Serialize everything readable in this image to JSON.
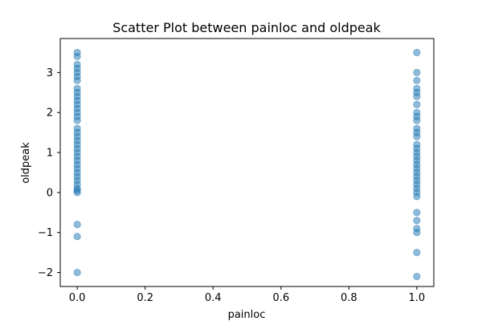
{
  "chart_data": {
    "type": "scatter",
    "title": "Scatter Plot between painloc and oldpeak",
    "xlabel": "painloc",
    "ylabel": "oldpeak",
    "xlim": [
      -0.05,
      1.05
    ],
    "ylim": [
      -2.35,
      3.85
    ],
    "xticks": [
      0.0,
      0.2,
      0.4,
      0.6,
      0.8,
      1.0
    ],
    "xtick_labels": [
      "0.0",
      "0.2",
      "0.4",
      "0.6",
      "0.8",
      "1.0"
    ],
    "yticks": [
      -2,
      -1,
      0,
      1,
      2,
      3
    ],
    "ytick_labels": [
      "−2",
      "−1",
      "0",
      "1",
      "2",
      "3"
    ],
    "grid": false,
    "marker_color": "#1f77b4",
    "marker_alpha": 0.5,
    "series": [
      {
        "points": [
          {
            "x": 0,
            "y": 3.5
          },
          {
            "x": 0,
            "y": 3.4
          },
          {
            "x": 0,
            "y": 3.2
          },
          {
            "x": 0,
            "y": 3.1
          },
          {
            "x": 0,
            "y": 3.0
          },
          {
            "x": 0,
            "y": 2.9
          },
          {
            "x": 0,
            "y": 2.8
          },
          {
            "x": 0,
            "y": 2.6
          },
          {
            "x": 0,
            "y": 2.5
          },
          {
            "x": 0,
            "y": 2.4
          },
          {
            "x": 0,
            "y": 2.3
          },
          {
            "x": 0,
            "y": 2.2
          },
          {
            "x": 0,
            "y": 2.1
          },
          {
            "x": 0,
            "y": 2.0
          },
          {
            "x": 0,
            "y": 1.9
          },
          {
            "x": 0,
            "y": 1.8
          },
          {
            "x": 0,
            "y": 1.6
          },
          {
            "x": 0,
            "y": 1.5
          },
          {
            "x": 0,
            "y": 1.4
          },
          {
            "x": 0,
            "y": 1.3
          },
          {
            "x": 0,
            "y": 1.2
          },
          {
            "x": 0,
            "y": 1.1
          },
          {
            "x": 0,
            "y": 1.0
          },
          {
            "x": 0,
            "y": 0.9
          },
          {
            "x": 0,
            "y": 0.8
          },
          {
            "x": 0,
            "y": 0.7
          },
          {
            "x": 0,
            "y": 0.6
          },
          {
            "x": 0,
            "y": 0.5
          },
          {
            "x": 0,
            "y": 0.4
          },
          {
            "x": 0,
            "y": 0.3
          },
          {
            "x": 0,
            "y": 0.2
          },
          {
            "x": 0,
            "y": 0.1
          },
          {
            "x": 0,
            "y": 0.05
          },
          {
            "x": 0,
            "y": 0.0
          },
          {
            "x": 0,
            "y": -0.8
          },
          {
            "x": 0,
            "y": -1.1
          },
          {
            "x": 0,
            "y": -2.0
          },
          {
            "x": 1,
            "y": 3.5
          },
          {
            "x": 1,
            "y": 3.0
          },
          {
            "x": 1,
            "y": 2.8
          },
          {
            "x": 1,
            "y": 2.6
          },
          {
            "x": 1,
            "y": 2.5
          },
          {
            "x": 1,
            "y": 2.4
          },
          {
            "x": 1,
            "y": 2.2
          },
          {
            "x": 1,
            "y": 2.0
          },
          {
            "x": 1,
            "y": 1.9
          },
          {
            "x": 1,
            "y": 1.8
          },
          {
            "x": 1,
            "y": 1.6
          },
          {
            "x": 1,
            "y": 1.5
          },
          {
            "x": 1,
            "y": 1.4
          },
          {
            "x": 1,
            "y": 1.2
          },
          {
            "x": 1,
            "y": 1.1
          },
          {
            "x": 1,
            "y": 1.0
          },
          {
            "x": 1,
            "y": 0.9
          },
          {
            "x": 1,
            "y": 0.8
          },
          {
            "x": 1,
            "y": 0.7
          },
          {
            "x": 1,
            "y": 0.6
          },
          {
            "x": 1,
            "y": 0.5
          },
          {
            "x": 1,
            "y": 0.4
          },
          {
            "x": 1,
            "y": 0.3
          },
          {
            "x": 1,
            "y": 0.2
          },
          {
            "x": 1,
            "y": 0.1
          },
          {
            "x": 1,
            "y": 0.0
          },
          {
            "x": 1,
            "y": -0.1
          },
          {
            "x": 1,
            "y": -0.5
          },
          {
            "x": 1,
            "y": -0.7
          },
          {
            "x": 1,
            "y": -0.9
          },
          {
            "x": 1,
            "y": -1.0
          },
          {
            "x": 1,
            "y": -1.5
          },
          {
            "x": 1,
            "y": -2.1
          }
        ]
      }
    ]
  }
}
